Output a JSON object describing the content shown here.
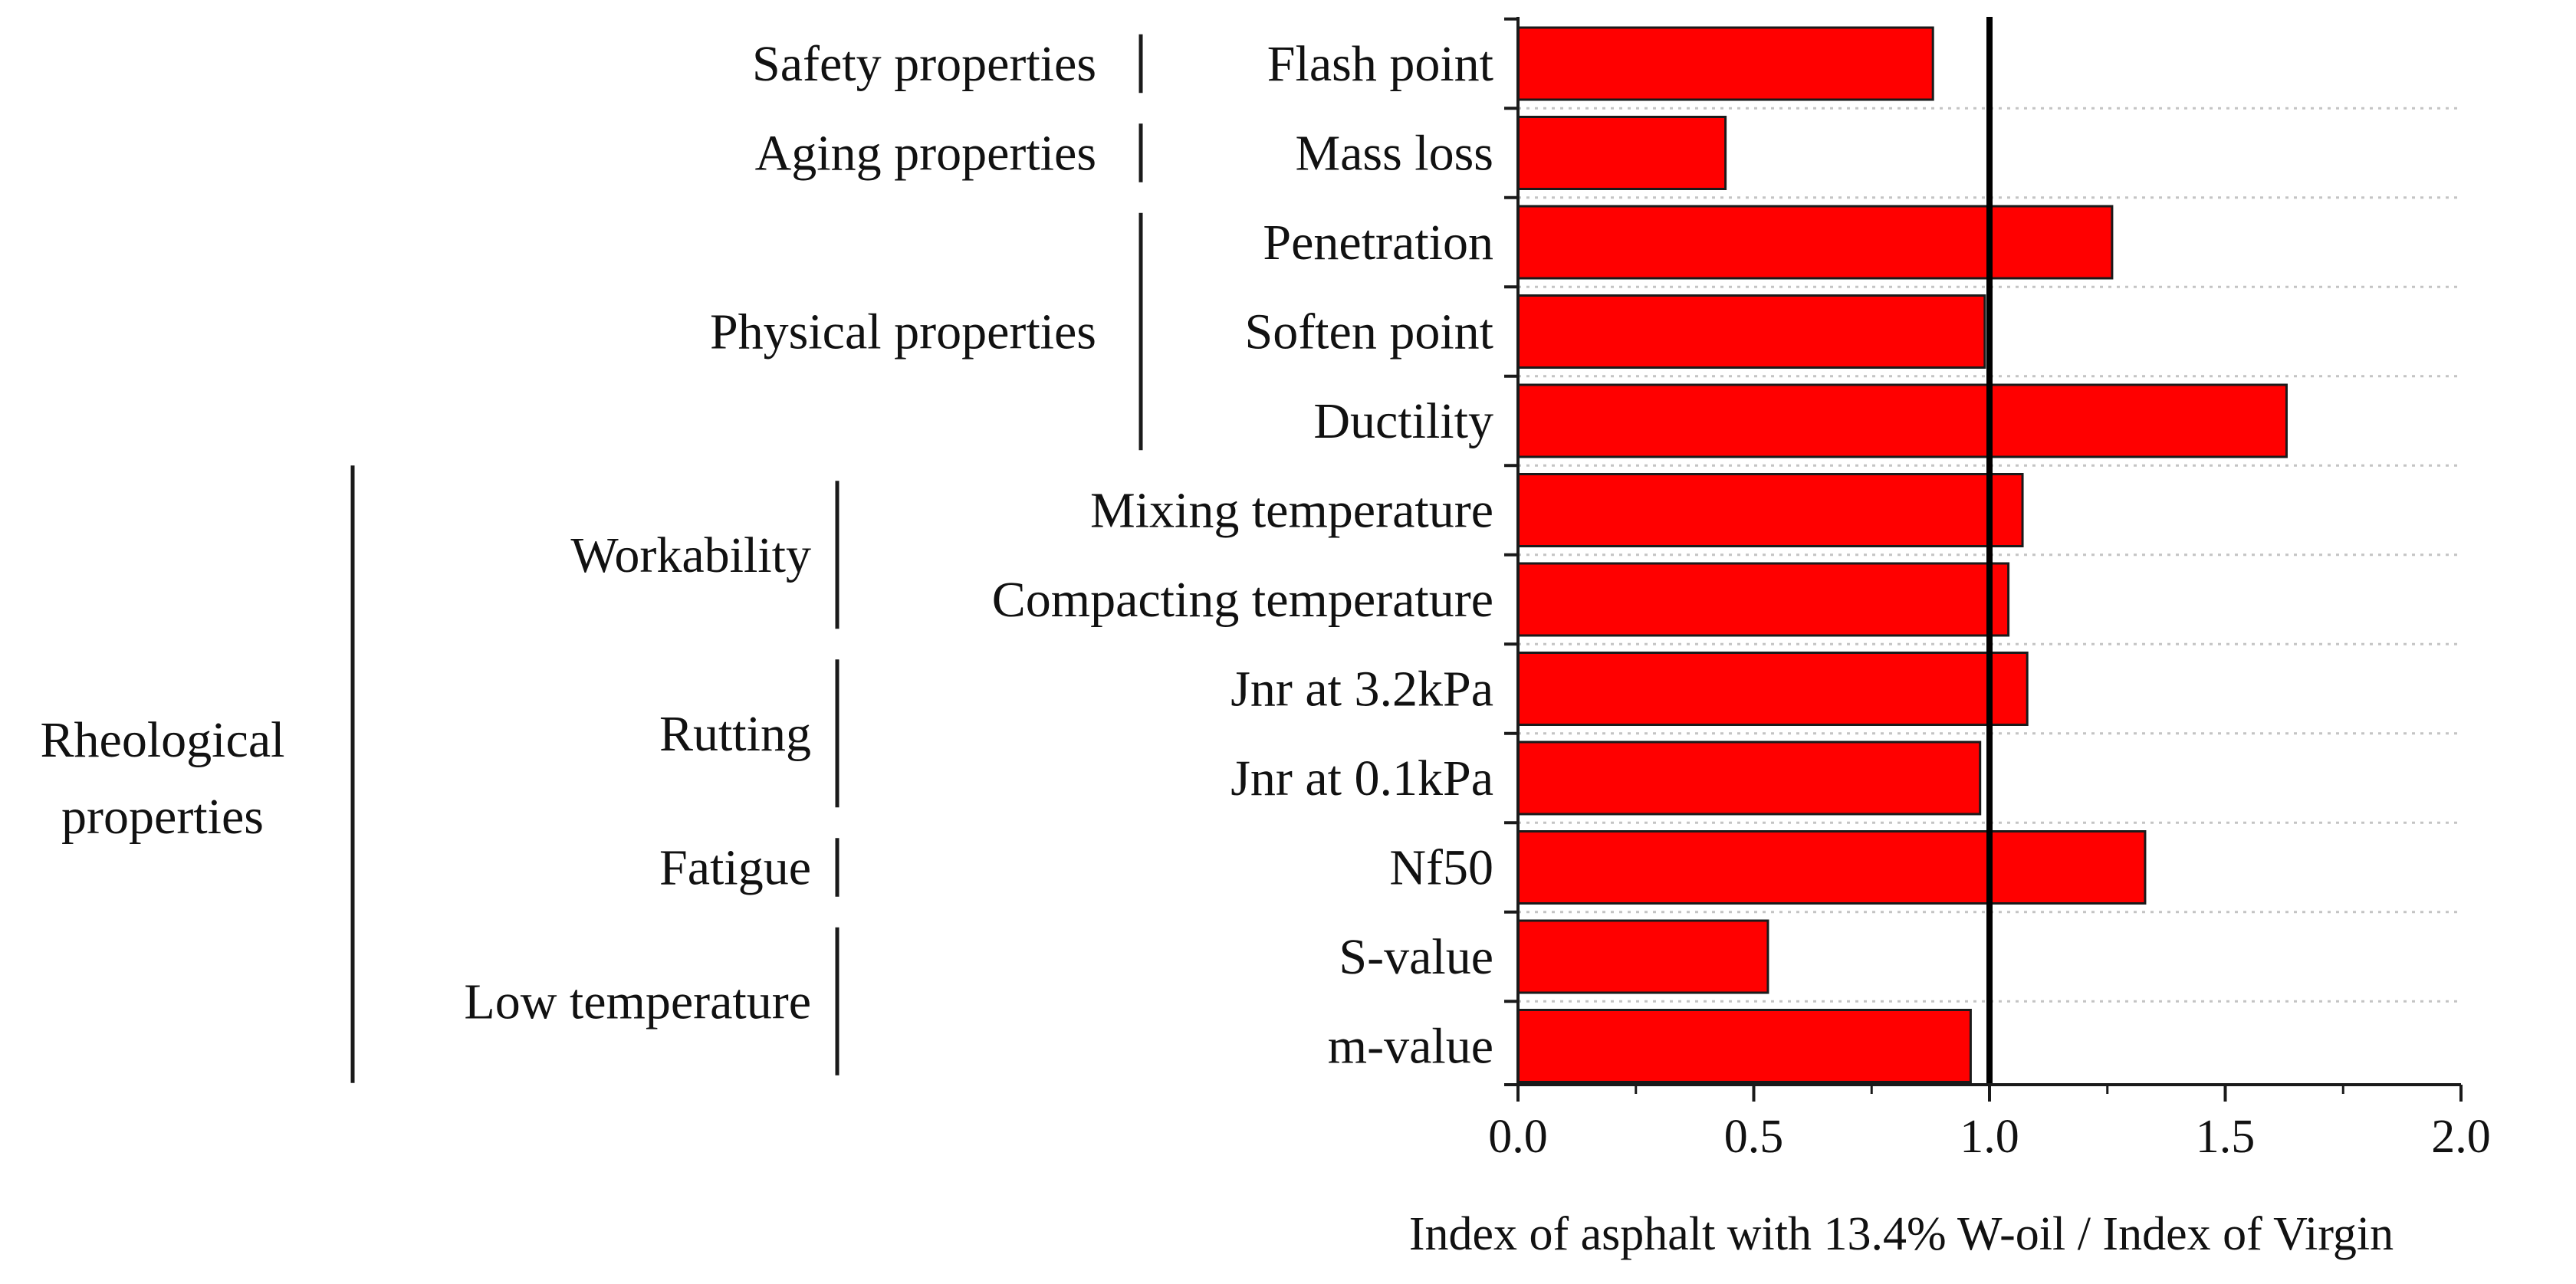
{
  "chart_data": {
    "type": "bar",
    "orientation": "horizontal",
    "categories": [
      "Flash point",
      "Mass loss",
      "Penetration",
      "Soften point",
      "Ductility",
      "Mixing temperature",
      "Compacting temperature",
      "Jnr at 3.2kPa",
      "Jnr at 0.1kPa",
      "Nf50",
      "S-value",
      "m-value"
    ],
    "values": [
      0.88,
      0.44,
      1.26,
      0.99,
      1.63,
      1.07,
      1.04,
      1.08,
      0.98,
      1.33,
      0.53,
      0.96
    ],
    "xlabel": "Index of asphalt with 13.4% W-oil / Index of Virgin",
    "ylabel": "",
    "xlim": [
      0.0,
      2.0
    ],
    "xticks": [
      "0.0",
      "0.5",
      "1.0",
      "1.5",
      "2.0"
    ],
    "reference_line": 1.0,
    "bar_color": "#ff0000",
    "bar_edge_color": "#1a1a1a",
    "grid": "horizontal dotted",
    "groups": [
      {
        "label": "Safety properties",
        "from": 0,
        "to": 0
      },
      {
        "label": "Aging properties",
        "from": 1,
        "to": 1
      },
      {
        "label": "Physical properties",
        "from": 2,
        "to": 4
      }
    ],
    "subgroups": [
      {
        "label": "Workability",
        "from": 5,
        "to": 6
      },
      {
        "label": "Rutting",
        "from": 7,
        "to": 8
      },
      {
        "label": "Fatigue",
        "from": 9,
        "to": 9
      },
      {
        "label": "Low temperature",
        "from": 10,
        "to": 11
      }
    ],
    "outer_group": {
      "lines": [
        "Rheological",
        "properties"
      ],
      "from": 5,
      "to": 11
    }
  }
}
